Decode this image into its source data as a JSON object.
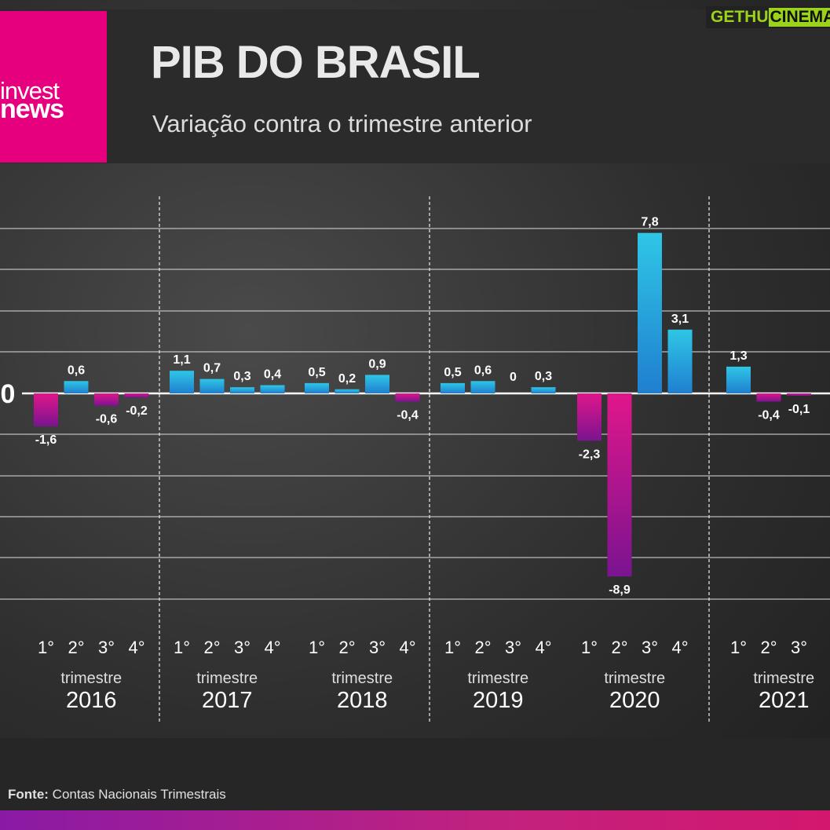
{
  "header": {
    "logo_line1": "invest",
    "logo_line2": "news",
    "title": "PIB DO BRASIL",
    "subtitle": "Variação contra o trimestre anterior"
  },
  "watermark": {
    "part1": "GETHU",
    "part2": "CINEMA"
  },
  "source": {
    "label": "Fonte:",
    "text": "Contas Nacionais Trimestrais"
  },
  "colors": {
    "positive_top": "#2fc6e6",
    "positive_bottom": "#1f7fd0",
    "negative_top": "#e0168a",
    "negative_bottom": "#7a1490",
    "accent": "#e6007e"
  },
  "chart_data": {
    "type": "bar",
    "zero_label": "0",
    "quarter_label": "trimestre",
    "groups": [
      {
        "year": "2016",
        "quarters": [
          "1°",
          "2°",
          "3°",
          "4°"
        ],
        "values": [
          -1.6,
          0.6,
          -0.6,
          -0.2
        ],
        "labels": [
          "-1,6",
          "0,6",
          "-0,6",
          "-0,2"
        ]
      },
      {
        "year": "2017",
        "quarters": [
          "1°",
          "2°",
          "3°",
          "4°"
        ],
        "values": [
          1.1,
          0.7,
          0.3,
          0.4
        ],
        "labels": [
          "1,1",
          "0,7",
          "0,3",
          "0,4"
        ]
      },
      {
        "year": "2018",
        "quarters": [
          "1°",
          "2°",
          "3°",
          "4°"
        ],
        "values": [
          0.5,
          0.2,
          0.9,
          -0.4
        ],
        "labels": [
          "0,5",
          "0,2",
          "0,9",
          "-0,4"
        ]
      },
      {
        "year": "2019",
        "quarters": [
          "1°",
          "2°",
          "3°",
          "4°"
        ],
        "values": [
          0.5,
          0.6,
          0,
          0.3
        ],
        "labels": [
          "0,5",
          "0,6",
          "0",
          "0,3"
        ]
      },
      {
        "year": "2020",
        "quarters": [
          "1°",
          "2°",
          "3°",
          "4°"
        ],
        "values": [
          -2.3,
          -8.9,
          7.8,
          3.1
        ],
        "labels": [
          "-2,3",
          "-8,9",
          "7,8",
          "3,1"
        ]
      },
      {
        "year": "2021",
        "quarters": [
          "1°",
          "2°",
          "3°"
        ],
        "values": [
          1.3,
          -0.4,
          -0.1
        ],
        "labels": [
          "1,3",
          "-0,4",
          "-0,1"
        ]
      }
    ]
  }
}
